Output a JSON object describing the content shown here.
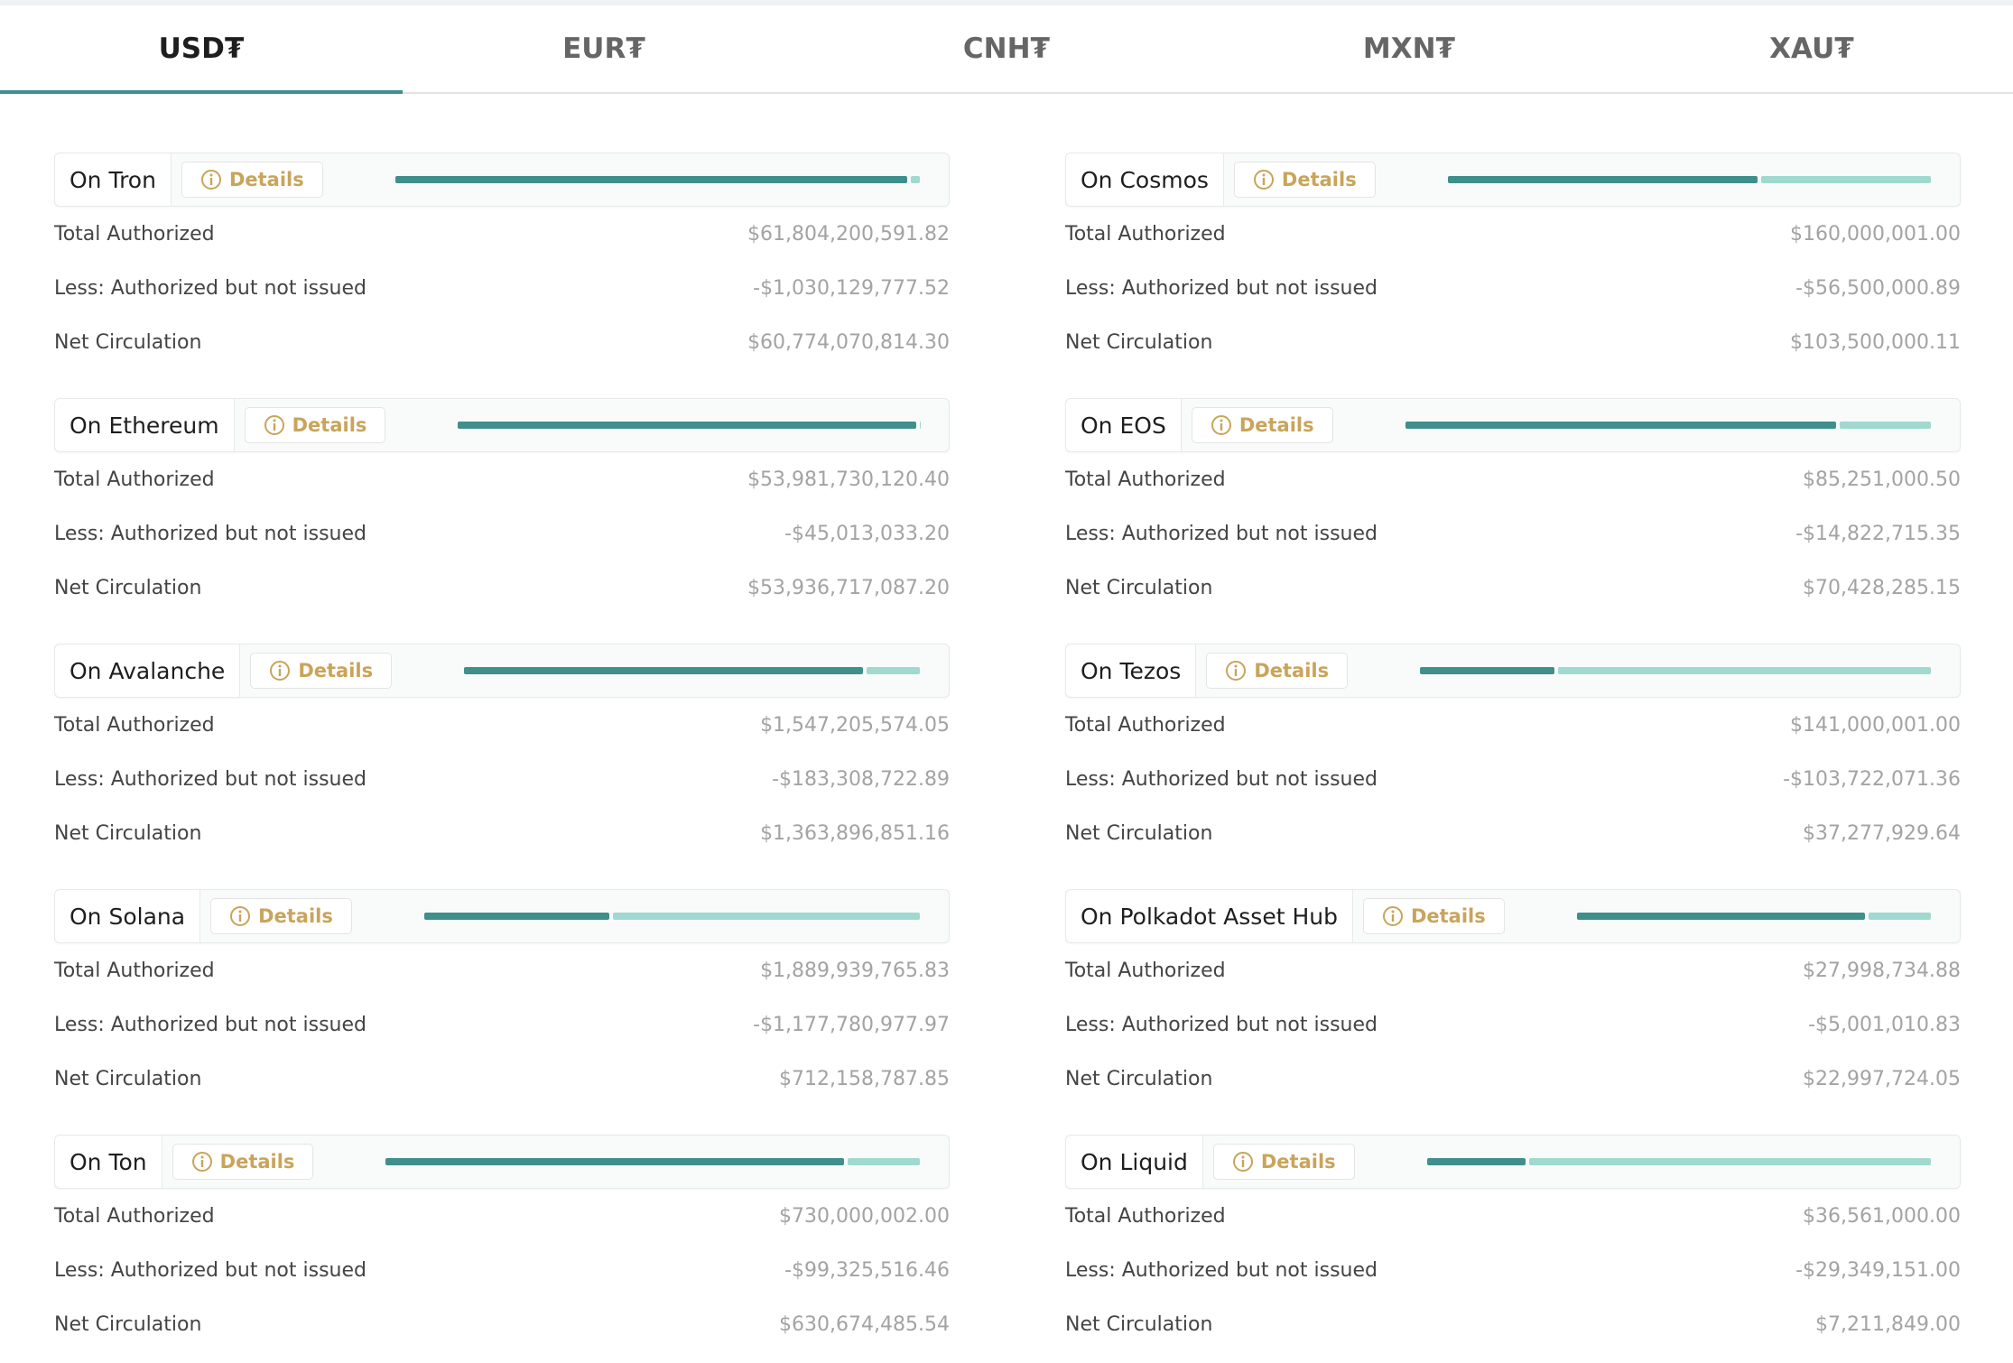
{
  "tabs": [
    "USD₮",
    "EUR₮",
    "CNH₮",
    "MXN₮",
    "XAU₮"
  ],
  "cards": [
    {
      "name": "On Tron",
      "details": "Details",
      "rows": [
        {
          "label": "Total Authorized",
          "value": "$61,804,200,591.82"
        },
        {
          "label": "Less: Authorized but not issued",
          "value": "-$1,030,129,777.52"
        },
        {
          "label": "Net Circulation",
          "value": "$60,774,070,814.30"
        }
      ]
    },
    {
      "name": "On Cosmos",
      "details": "Details",
      "rows": [
        {
          "label": "Total Authorized",
          "value": "$160,000,001.00"
        },
        {
          "label": "Less: Authorized but not issued",
          "value": "-$56,500,000.89"
        },
        {
          "label": "Net Circulation",
          "value": "$103,500,000.11"
        }
      ]
    },
    {
      "name": "On Ethereum",
      "details": "Details",
      "rows": [
        {
          "label": "Total Authorized",
          "value": "$53,981,730,120.40"
        },
        {
          "label": "Less: Authorized but not issued",
          "value": "-$45,013,033.20"
        },
        {
          "label": "Net Circulation",
          "value": "$53,936,717,087.20"
        }
      ]
    },
    {
      "name": "On EOS",
      "details": "Details",
      "rows": [
        {
          "label": "Total Authorized",
          "value": "$85,251,000.50"
        },
        {
          "label": "Less: Authorized but not issued",
          "value": "-$14,822,715.35"
        },
        {
          "label": "Net Circulation",
          "value": "$70,428,285.15"
        }
      ]
    },
    {
      "name": "On Avalanche",
      "details": "Details",
      "rows": [
        {
          "label": "Total Authorized",
          "value": "$1,547,205,574.05"
        },
        {
          "label": "Less: Authorized but not issued",
          "value": "-$183,308,722.89"
        },
        {
          "label": "Net Circulation",
          "value": "$1,363,896,851.16"
        }
      ]
    },
    {
      "name": "On Tezos",
      "details": "Details",
      "rows": [
        {
          "label": "Total Authorized",
          "value": "$141,000,001.00"
        },
        {
          "label": "Less: Authorized but not issued",
          "value": "-$103,722,071.36"
        },
        {
          "label": "Net Circulation",
          "value": "$37,277,929.64"
        }
      ]
    },
    {
      "name": "On Solana",
      "details": "Details",
      "rows": [
        {
          "label": "Total Authorized",
          "value": "$1,889,939,765.83"
        },
        {
          "label": "Less: Authorized but not issued",
          "value": "-$1,177,780,977.97"
        },
        {
          "label": "Net Circulation",
          "value": "$712,158,787.85"
        }
      ]
    },
    {
      "name": "On Polkadot Asset Hub",
      "details": "Details",
      "rows": [
        {
          "label": "Total Authorized",
          "value": "$27,998,734.88"
        },
        {
          "label": "Less: Authorized but not issued",
          "value": "-$5,001,010.83"
        },
        {
          "label": "Net Circulation",
          "value": "$22,997,724.05"
        }
      ]
    },
    {
      "name": "On Ton",
      "details": "Details",
      "rows": [
        {
          "label": "Total Authorized",
          "value": "$730,000,002.00"
        },
        {
          "label": "Less: Authorized but not issued",
          "value": "-$99,325,516.46"
        },
        {
          "label": "Net Circulation",
          "value": "$630,674,485.54"
        }
      ]
    },
    {
      "name": "On Liquid",
      "details": "Details",
      "rows": [
        {
          "label": "Total Authorized",
          "value": "$36,561,000.00"
        },
        {
          "label": "Less: Authorized but not issued",
          "value": "-$29,349,151.00"
        },
        {
          "label": "Net Circulation",
          "value": "$7,211,849.00"
        }
      ]
    }
  ]
}
